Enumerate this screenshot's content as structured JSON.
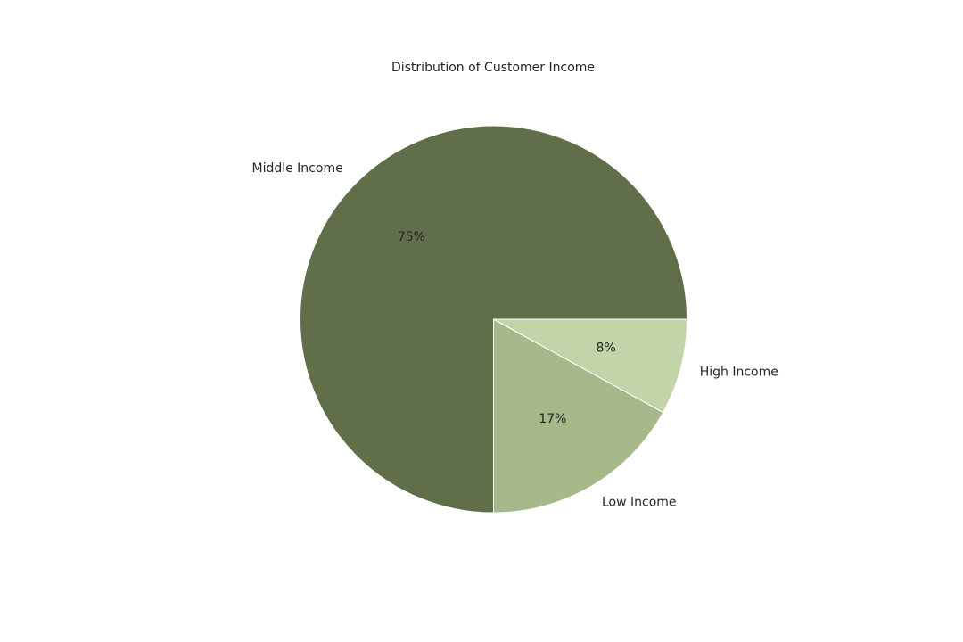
{
  "chart_data": {
    "type": "pie",
    "title": "Distribution of Customer Income",
    "categories": [
      "Middle Income",
      "Low Income",
      "High Income"
    ],
    "values": [
      75,
      17,
      8
    ],
    "value_labels": [
      "75%",
      "17%",
      "8%"
    ],
    "colors": [
      "#606e4a",
      "#a7b98a",
      "#c2d4a8"
    ],
    "start_angle_deg": 0,
    "direction": "counterclockwise",
    "legend": "none"
  }
}
